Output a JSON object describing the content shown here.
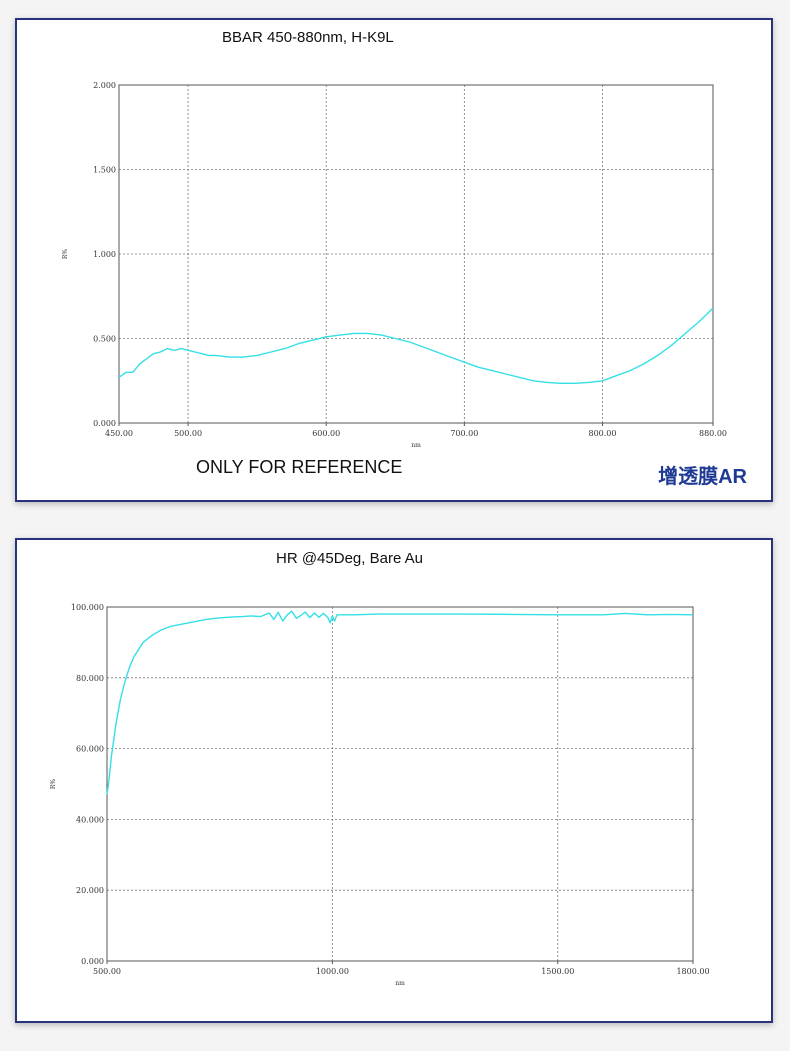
{
  "panels": [
    {
      "title": "BBAR 450-880nm, H-K9L",
      "note": "ONLY FOR REFERENCE",
      "badge": "增透膜AR"
    },
    {
      "title": "HR @45Deg, Bare Au"
    }
  ],
  "colors": {
    "curve": "#33e0e6",
    "border": "#27337a",
    "badge": "#1f3a93",
    "grid": "#777777"
  },
  "chart_data": [
    {
      "type": "line",
      "title": "BBAR 450-880nm, H-K9L",
      "xlabel": "nm",
      "ylabel": "R%",
      "xlim": [
        450,
        880
      ],
      "ylim": [
        0,
        2
      ],
      "grid": true,
      "x_ticks": [
        450,
        500,
        600,
        700,
        800,
        880
      ],
      "x_tick_labels": [
        "450.00",
        "500.00",
        "600.00",
        "700.00",
        "800.00",
        "880.00"
      ],
      "y_ticks": [
        0,
        0.5,
        1,
        1.5,
        2
      ],
      "y_tick_labels": [
        "0.000",
        "0.500",
        "1.000",
        "1.500",
        "2.000"
      ],
      "series": [
        {
          "x": [
            450,
            455,
            460,
            465,
            470,
            475,
            480,
            485,
            490,
            495,
            500,
            505,
            510,
            515,
            520,
            530,
            540,
            550,
            560,
            570,
            580,
            590,
            600,
            610,
            620,
            630,
            640,
            650,
            660,
            670,
            680,
            690,
            700,
            710,
            720,
            730,
            740,
            750,
            760,
            770,
            780,
            790,
            800,
            810,
            820,
            830,
            840,
            850,
            860,
            870,
            880
          ],
          "y": [
            0.27,
            0.3,
            0.3,
            0.35,
            0.38,
            0.41,
            0.42,
            0.44,
            0.43,
            0.44,
            0.43,
            0.42,
            0.41,
            0.4,
            0.4,
            0.39,
            0.39,
            0.4,
            0.42,
            0.44,
            0.47,
            0.49,
            0.51,
            0.52,
            0.53,
            0.53,
            0.52,
            0.5,
            0.48,
            0.45,
            0.42,
            0.39,
            0.36,
            0.33,
            0.31,
            0.29,
            0.27,
            0.25,
            0.24,
            0.235,
            0.235,
            0.24,
            0.25,
            0.28,
            0.31,
            0.35,
            0.4,
            0.46,
            0.53,
            0.6,
            0.68
          ]
        }
      ]
    },
    {
      "type": "line",
      "title": "HR @45Deg, Bare Au",
      "xlabel": "nm",
      "ylabel": "R%",
      "xlim": [
        500,
        1800
      ],
      "ylim": [
        0,
        100
      ],
      "grid": true,
      "x_ticks": [
        500,
        1000,
        1500,
        1800
      ],
      "x_tick_labels": [
        "500.00",
        "1000.00",
        "1500.00",
        "1800.00"
      ],
      "y_ticks": [
        0,
        20,
        40,
        60,
        80,
        100
      ],
      "y_tick_labels": [
        "0.000",
        "20.000",
        "40.000",
        "60.000",
        "80.000",
        "100.000"
      ],
      "series": [
        {
          "x": [
            500,
            505,
            510,
            520,
            530,
            540,
            550,
            560,
            570,
            580,
            600,
            620,
            640,
            660,
            680,
            700,
            720,
            740,
            760,
            780,
            800,
            820,
            840,
            860,
            870,
            880,
            890,
            900,
            910,
            920,
            930,
            940,
            950,
            960,
            970,
            980,
            990,
            995,
            1000,
            1005,
            1010,
            1050,
            1100,
            1200,
            1300,
            1400,
            1500,
            1600,
            1650,
            1700,
            1750,
            1800
          ],
          "y": [
            47,
            52,
            58,
            67,
            74,
            79,
            83,
            86,
            88,
            90,
            92,
            93.5,
            94.5,
            95,
            95.5,
            96,
            96.5,
            96.8,
            97,
            97.2,
            97.3,
            97.5,
            97.3,
            98.3,
            96.5,
            98.5,
            96,
            97.8,
            98.8,
            96.8,
            97.6,
            98.6,
            97,
            98.3,
            97.1,
            98.2,
            97,
            95.5,
            97.5,
            96,
            97.8,
            97.8,
            98,
            98,
            98,
            97.9,
            97.8,
            97.8,
            98.2,
            97.8,
            97.9,
            97.8
          ]
        }
      ]
    }
  ]
}
